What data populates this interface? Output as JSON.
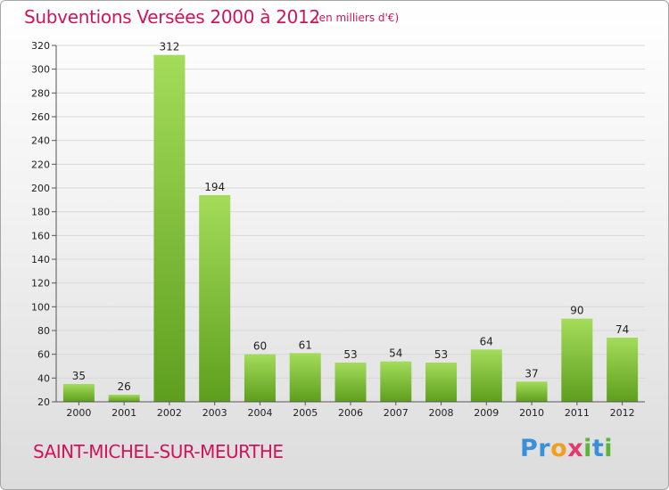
{
  "header": {
    "title": "Subventions Versées 2000 à 2012",
    "unit": "(en milliers d'€)"
  },
  "footer": {
    "commune": "SAINT-MICHEL-SUR-MEURTHE",
    "logo": "Proxiti"
  },
  "colors": {
    "title": "#d1145a",
    "bar_light": "#a4dc5a",
    "bar_dark": "#5e9e1e",
    "grid": "#d8d8d8"
  },
  "chart_data": {
    "type": "bar",
    "categories": [
      "2000",
      "2001",
      "2002",
      "2003",
      "2004",
      "2005",
      "2006",
      "2007",
      "2008",
      "2009",
      "2010",
      "2011",
      "2012"
    ],
    "values": [
      35,
      26,
      312,
      194,
      60,
      61,
      53,
      54,
      53,
      64,
      37,
      90,
      74
    ],
    "ylim": [
      20,
      320
    ],
    "yticks": [
      20,
      40,
      60,
      80,
      100,
      120,
      140,
      160,
      180,
      200,
      220,
      240,
      260,
      280,
      300,
      320
    ],
    "grid": true,
    "xlabel": "",
    "ylabel": ""
  }
}
